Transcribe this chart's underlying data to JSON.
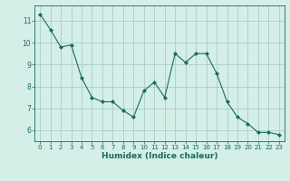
{
  "x": [
    0,
    1,
    2,
    3,
    4,
    5,
    6,
    7,
    8,
    9,
    10,
    11,
    12,
    13,
    14,
    15,
    16,
    17,
    18,
    19,
    20,
    21,
    22,
    23
  ],
  "y": [
    11.3,
    10.6,
    9.8,
    9.9,
    8.4,
    7.5,
    7.3,
    7.3,
    6.9,
    6.6,
    7.8,
    8.2,
    7.5,
    9.5,
    9.1,
    9.5,
    9.5,
    8.6,
    7.3,
    6.6,
    6.3,
    5.9,
    5.9,
    5.8
  ],
  "line_color": "#1a6b5a",
  "marker": "D",
  "marker_size": 2.0,
  "bg_color": "#d4eee8",
  "grid_color": "#aaccca",
  "xlabel": "Humidex (Indice chaleur)",
  "xlabel_color": "#1a6b5a",
  "tick_color": "#1a6b5a",
  "ylabel_ticks": [
    6,
    7,
    8,
    9,
    10,
    11
  ],
  "ylim": [
    5.5,
    11.7
  ],
  "xlim": [
    -0.5,
    23.5
  ],
  "xticks": [
    0,
    1,
    2,
    3,
    4,
    5,
    6,
    7,
    8,
    9,
    10,
    11,
    12,
    13,
    14,
    15,
    16,
    17,
    18,
    19,
    20,
    21,
    22,
    23
  ],
  "tick_fontsize": 5.0,
  "ytick_fontsize": 5.5,
  "xlabel_fontsize": 6.5,
  "linewidth": 0.8
}
